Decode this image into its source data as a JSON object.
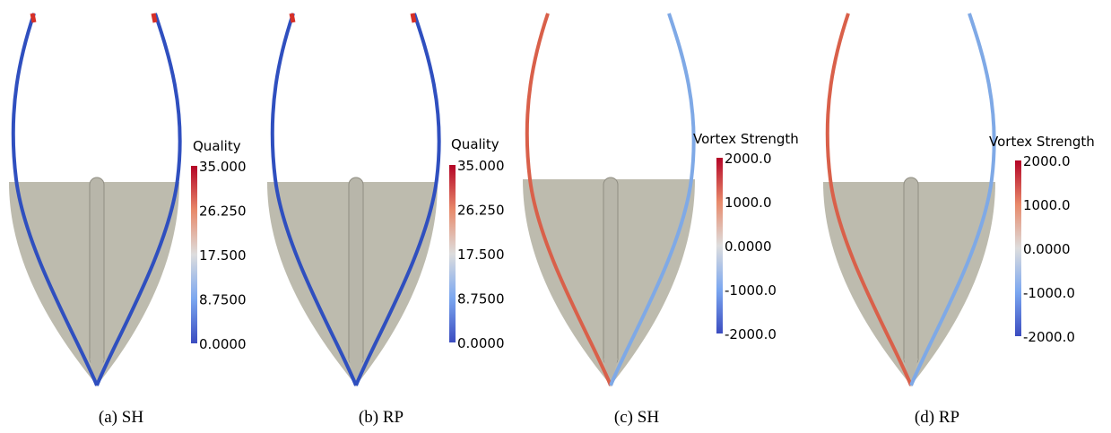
{
  "panels": [
    {
      "colorbar": {
        "title": "Quality",
        "labels": [
          "35.000",
          "26.250",
          "17.500",
          "8.7500",
          "0.0000"
        ]
      },
      "caption": "(a) SH"
    },
    {
      "colorbar": {
        "title": "Quality",
        "labels": [
          "35.000",
          "26.250",
          "17.500",
          "8.7500",
          "0.0000"
        ]
      },
      "caption": "(b) RP"
    },
    {
      "colorbar": {
        "title": "Vortex Strength",
        "labels": [
          "2000.0",
          "1000.0",
          "0.0000",
          "-1000.0",
          "-2000.0"
        ]
      },
      "caption": "(c) SH"
    },
    {
      "colorbar": {
        "title": "Vortex Strength",
        "labels": [
          "2000.0",
          "1000.0",
          "0.0000",
          "-1000.0",
          "-2000.0"
        ]
      },
      "caption": "(d) RP"
    }
  ]
}
